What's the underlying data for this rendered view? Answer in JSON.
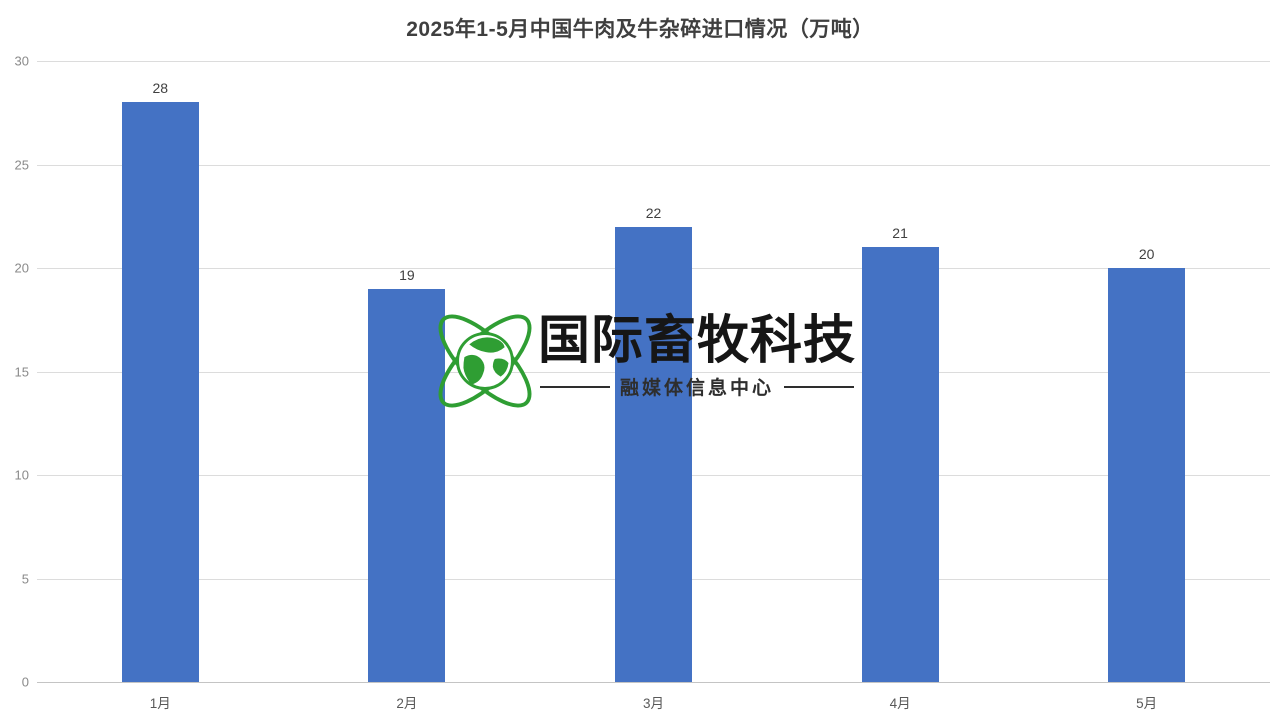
{
  "chart_data": {
    "type": "bar",
    "title": "2025年1-5月中国牛肉及牛杂碎进口情况（万吨）",
    "categories": [
      "1月",
      "2月",
      "3月",
      "4月",
      "5月"
    ],
    "values": [
      28,
      19,
      22,
      21,
      20
    ],
    "xlabel": "",
    "ylabel": "",
    "ylim": [
      0,
      30
    ],
    "yticks": [
      0,
      5,
      10,
      15,
      20,
      25,
      30
    ],
    "bar_color": "#4472C4",
    "grid": true,
    "gridline_color": "#dcdcdc",
    "legend": "none"
  },
  "watermark": {
    "logo_text": "国际畜牧科技",
    "sub_text": "融媒体信息中心",
    "globe_icon": "globe-orbit-icon",
    "globe_color": "#2f9e33",
    "text_color": "#161616"
  }
}
